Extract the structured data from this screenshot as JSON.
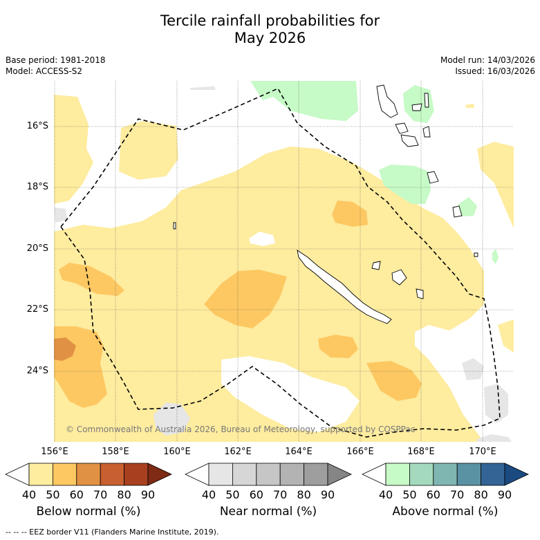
{
  "title_line1": "Tercile rainfall probabilities for",
  "title_line2": "May 2026",
  "base_period": "Base period: 1981-2018",
  "model": "Model: ACCESS-S2",
  "model_run": "Model run: 14/03/2026",
  "issued": "Issued: 16/03/2026",
  "lat_ticks": [
    "16°S",
    "18°S",
    "20°S",
    "22°S",
    "24°S"
  ],
  "lon_ticks": [
    "156°E",
    "158°E",
    "160°E",
    "162°E",
    "164°E",
    "166°E",
    "168°E",
    "170°E"
  ],
  "copyright": "© Commonwealth of Australia 2026, Bureau of Meteorology, supported by COSPPac",
  "colorbars": [
    {
      "label": "Below normal (%)",
      "ticks": [
        "40",
        "50",
        "60",
        "70",
        "80",
        "90"
      ],
      "colors": [
        "#ffffff",
        "#feec9f",
        "#fdc862",
        "#e19143",
        "#c85f30",
        "#a84020",
        "#7e2a14"
      ]
    },
    {
      "label": "Near normal (%)",
      "ticks": [
        "40",
        "50",
        "60",
        "70",
        "80",
        "90"
      ],
      "colors": [
        "#ffffff",
        "#e6e6e6",
        "#d6d6d6",
        "#c6c6c6",
        "#b3b3b3",
        "#9e9e9e",
        "#858585"
      ]
    },
    {
      "label": "Above normal (%)",
      "ticks": [
        "40",
        "50",
        "60",
        "70",
        "80",
        "90"
      ],
      "colors": [
        "#ffffff",
        "#c6fac6",
        "#a4d9bd",
        "#80b6b2",
        "#5a92a4",
        "#346496",
        "#1a4a80"
      ]
    }
  ],
  "eez_legend": "--  --  -- EEZ border V11 (Flanders Marine Institute, 2019)."
}
